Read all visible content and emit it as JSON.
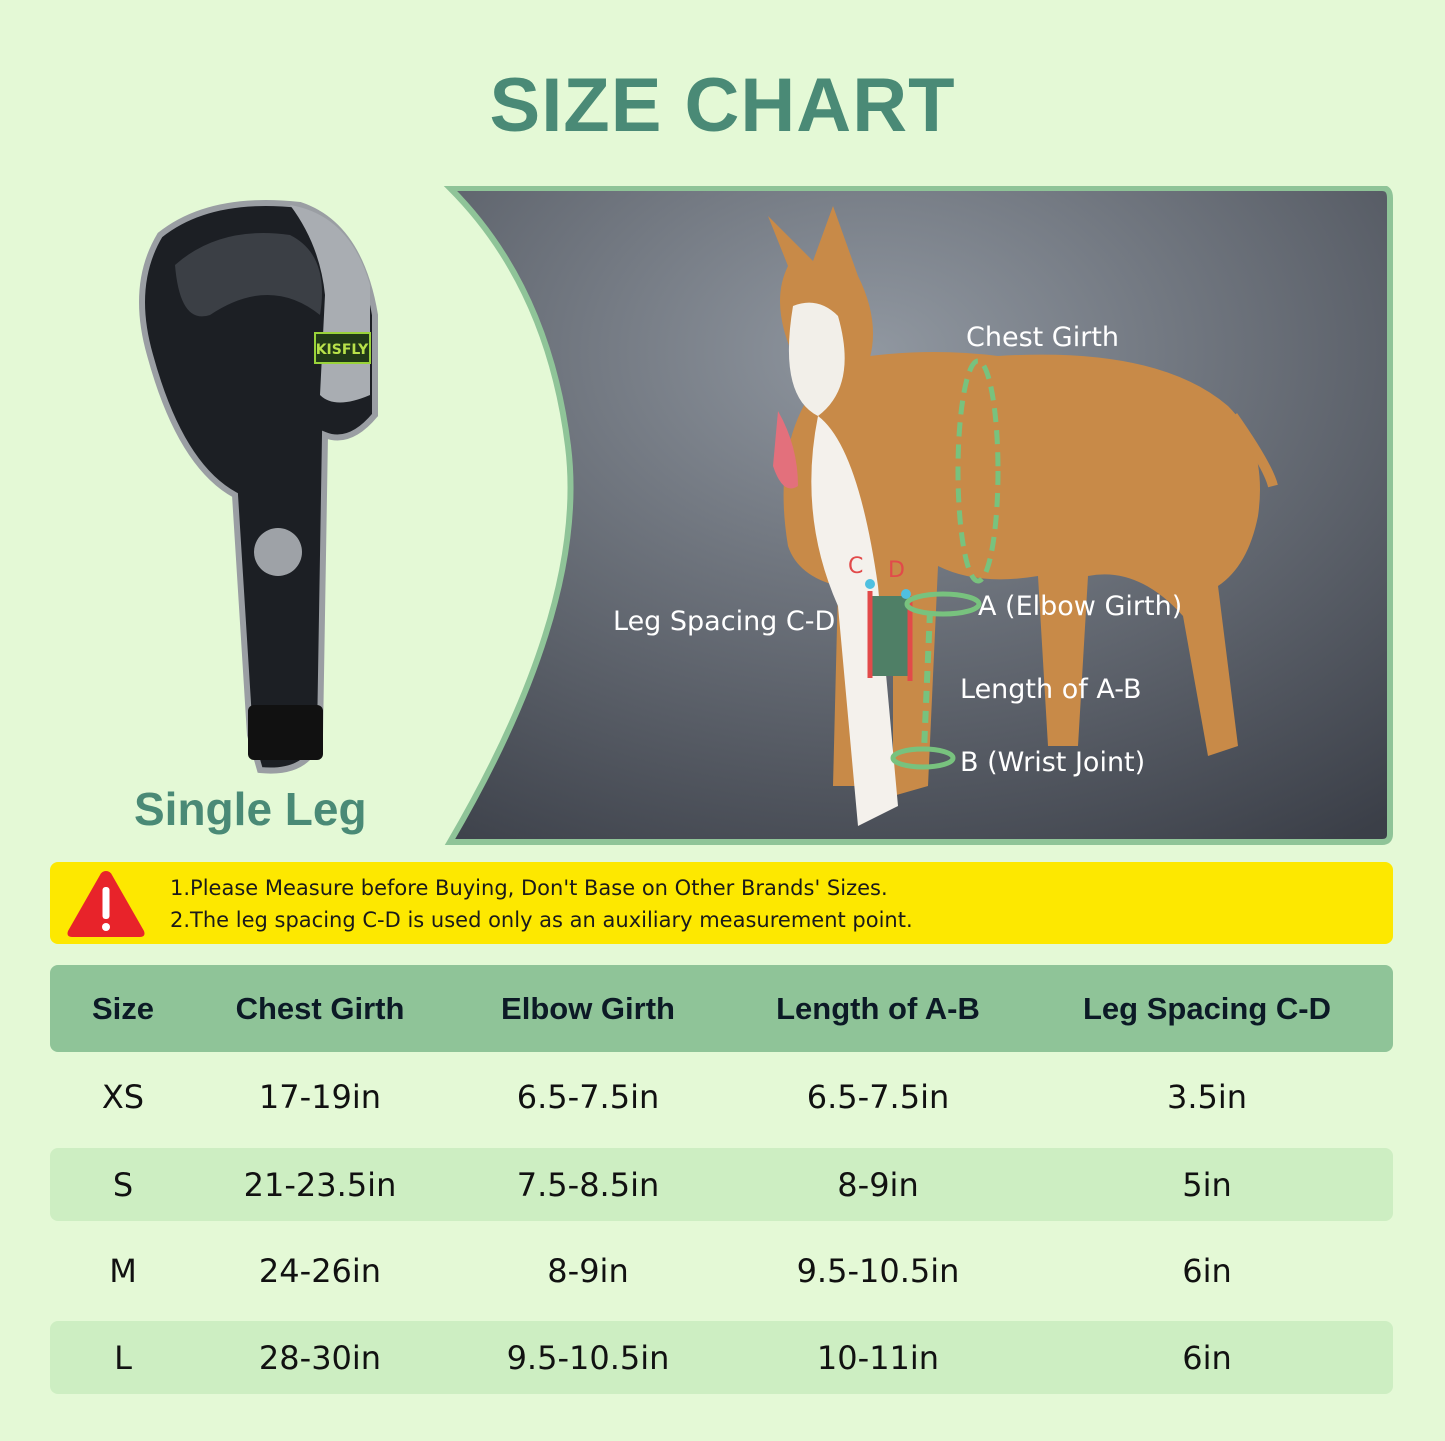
{
  "title": "SIZE CHART",
  "product": {
    "label": "Single Leg",
    "brand": "KISFLY"
  },
  "diagram": {
    "chest_girth": "Chest Girth",
    "leg_spacing": "Leg Spacing C-D",
    "point_c": "C",
    "point_d": "D",
    "elbow_girth": "A (Elbow Girth)",
    "length_ab": "Length of A-B",
    "wrist_joint": "B (Wrist Joint)"
  },
  "warning": {
    "icon": "warning-triangle-icon",
    "lines": [
      "1.Please Measure before Buying, Don't Base on Other Brands' Sizes.",
      "2.The leg spacing C-D is used only as an auxiliary measurement point."
    ]
  },
  "colors": {
    "background": "#e4f9d6",
    "accent": "#4a8a76",
    "header": "#8fc498",
    "alt_row": "#cdeec2",
    "warning": "#fde800"
  },
  "table": {
    "headers": [
      "Size",
      "Chest Girth",
      "Elbow Girth",
      "Length of A-B",
      "Leg Spacing C-D"
    ],
    "rows": [
      [
        "XS",
        "17-19in",
        "6.5-7.5in",
        "6.5-7.5in",
        "3.5in"
      ],
      [
        "S",
        "21-23.5in",
        "7.5-8.5in",
        "8-9in",
        "5in"
      ],
      [
        "M",
        "24-26in",
        "8-9in",
        "9.5-10.5in",
        "6in"
      ],
      [
        "L",
        "28-30in",
        "9.5-10.5in",
        "10-11in",
        "6in"
      ]
    ]
  }
}
